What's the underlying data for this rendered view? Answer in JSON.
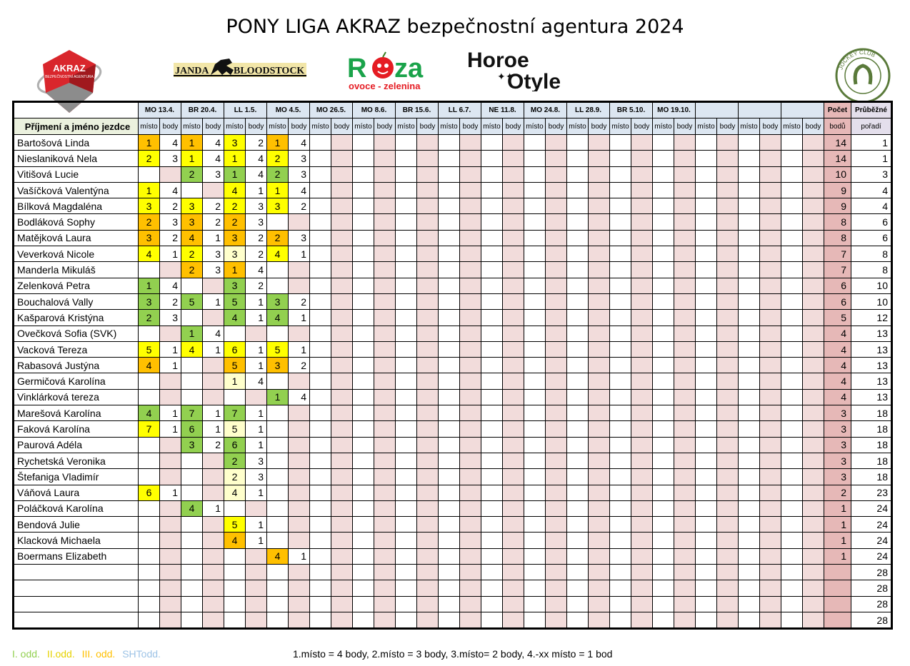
{
  "title": "PONY LIGA AKRAZ bezpečnostní agentura 2024",
  "logos": {
    "akraz_text": "AKRAZ",
    "akraz_sub": "BEZPEČNOSTNÍ AGENTURA",
    "janda_text": "JANDA BLOODSTOCK",
    "roza_text": "Rūza",
    "roza_sub": "ovoce - zelenina",
    "horse_line1": "Horse",
    "horse_line2": "Style",
    "jockey_text": "JOCKEY CLUB ČESKÉ REPUBLIKY"
  },
  "colors": {
    "I": "#92d050",
    "II": "#ffff00",
    "III": "#ffc000",
    "SHT": "#9dc3e6"
  },
  "events": [
    "MO 13.4.",
    "BR 20.4.",
    "LL 1.5.",
    "MO 4.5.",
    "MO 26.5.",
    "MO 8.6.",
    "BR 15.6.",
    "LL 6.7.",
    "NE 11.8.",
    "MO 24.8.",
    "LL 28.9.",
    "BR 5.10.",
    "MO 19.10.",
    "",
    "",
    ""
  ],
  "header": {
    "name_col": "Příjmení a jméno jezdce",
    "misto": "místo",
    "body": "body",
    "points_top": "Počet",
    "points_bottom": "bodů",
    "order_top": "Průběžné",
    "order_bottom": "pořadí"
  },
  "rows": [
    {
      "name": "Bartošová Linda",
      "r": [
        [
          "1",
          "4",
          "o"
        ],
        [
          "1",
          "4",
          "o"
        ],
        [
          "3",
          "2",
          "y"
        ],
        [
          "1",
          "4",
          "o"
        ]
      ],
      "sum": "14",
      "ord": "1"
    },
    {
      "name": "Nieslaniková Nela",
      "r": [
        [
          "2",
          "3",
          "y"
        ],
        [
          "1",
          "4",
          "y"
        ],
        [
          "1",
          "4",
          "y"
        ],
        [
          "2",
          "3",
          "y"
        ]
      ],
      "sum": "14",
      "ord": "1"
    },
    {
      "name": "Vitišová Lucie",
      "r": [
        [
          "",
          "",
          ""
        ],
        [
          "2",
          "3",
          "g"
        ],
        [
          "1",
          "4",
          "g"
        ],
        [
          "2",
          "3",
          "g"
        ]
      ],
      "sum": "10",
      "ord": "3"
    },
    {
      "name": "Vašíčková Valentýna",
      "r": [
        [
          "1",
          "4",
          "y"
        ],
        [
          "",
          "",
          ""
        ],
        [
          "4",
          "1",
          "y"
        ],
        [
          "1",
          "4",
          "y"
        ]
      ],
      "sum": "9",
      "ord": "4"
    },
    {
      "name": "Bílková Magdaléna",
      "r": [
        [
          "3",
          "2",
          "y"
        ],
        [
          "3",
          "2",
          "y"
        ],
        [
          "2",
          "3",
          "y"
        ],
        [
          "3",
          "2",
          "y"
        ]
      ],
      "sum": "9",
      "ord": "4"
    },
    {
      "name": "Bodláková Sophy",
      "r": [
        [
          "2",
          "3",
          "o"
        ],
        [
          "3",
          "2",
          "o"
        ],
        [
          "2",
          "3",
          "o"
        ],
        [
          "",
          "",
          ""
        ]
      ],
      "sum": "8",
      "ord": "6"
    },
    {
      "name": "Matějková Laura",
      "r": [
        [
          "3",
          "2",
          "o"
        ],
        [
          "4",
          "1",
          "o"
        ],
        [
          "3",
          "2",
          "o"
        ],
        [
          "2",
          "3",
          "o"
        ]
      ],
      "sum": "8",
      "ord": "6"
    },
    {
      "name": "Veverková Nicole",
      "r": [
        [
          "4",
          "1",
          "y"
        ],
        [
          "2",
          "3",
          "y"
        ],
        [
          "3",
          "2",
          "c"
        ],
        [
          "4",
          "1",
          "y"
        ]
      ],
      "sum": "7",
      "ord": "8"
    },
    {
      "name": "Manderla Mikuláš",
      "r": [
        [
          "",
          "",
          ""
        ],
        [
          "2",
          "3",
          "o"
        ],
        [
          "1",
          "4",
          "o"
        ],
        [
          "",
          "",
          ""
        ]
      ],
      "sum": "7",
      "ord": "8"
    },
    {
      "name": "Zelenková Petra",
      "r": [
        [
          "1",
          "4",
          "g"
        ],
        [
          "",
          "",
          ""
        ],
        [
          "3",
          "2",
          "g"
        ],
        [
          "",
          "",
          ""
        ]
      ],
      "sum": "6",
      "ord": "10"
    },
    {
      "name": "Bouchalová Vally",
      "r": [
        [
          "3",
          "2",
          "g"
        ],
        [
          "5",
          "1",
          "g"
        ],
        [
          "5",
          "1",
          "g"
        ],
        [
          "3",
          "2",
          "g"
        ]
      ],
      "sum": "6",
      "ord": "10"
    },
    {
      "name": "Kašparová Kristýna",
      "r": [
        [
          "2",
          "3",
          "g"
        ],
        [
          "",
          "",
          ""
        ],
        [
          "4",
          "1",
          "g"
        ],
        [
          "4",
          "1",
          "g"
        ]
      ],
      "sum": "5",
      "ord": "12"
    },
    {
      "name": "Ovečková Sofia (SVK)",
      "r": [
        [
          "",
          "",
          ""
        ],
        [
          "1",
          "4",
          "g"
        ],
        [
          "",
          "",
          ""
        ],
        [
          "",
          "",
          ""
        ]
      ],
      "sum": "4",
      "ord": "13"
    },
    {
      "name": "Vacková Tereza",
      "r": [
        [
          "5",
          "1",
          "y"
        ],
        [
          "4",
          "1",
          "y"
        ],
        [
          "6",
          "1",
          "y"
        ],
        [
          "5",
          "1",
          "y"
        ]
      ],
      "sum": "4",
      "ord": "13"
    },
    {
      "name": "Rabasová Justýna",
      "r": [
        [
          "4",
          "1",
          "o"
        ],
        [
          "",
          "",
          ""
        ],
        [
          "5",
          "1",
          "o"
        ],
        [
          "3",
          "2",
          "o"
        ]
      ],
      "sum": "4",
      "ord": "13"
    },
    {
      "name": "Germičová Karolína",
      "r": [
        [
          "",
          "",
          ""
        ],
        [
          "",
          "",
          ""
        ],
        [
          "1",
          "4",
          "c"
        ],
        [
          "",
          "",
          ""
        ]
      ],
      "sum": "4",
      "ord": "13"
    },
    {
      "name": "Vinklárková tereza",
      "r": [
        [
          "",
          "",
          ""
        ],
        [
          "",
          "",
          ""
        ],
        [
          "",
          "",
          ""
        ],
        [
          "1",
          "4",
          "g"
        ]
      ],
      "sum": "4",
      "ord": "13"
    },
    {
      "name": "Marešová Karolína",
      "r": [
        [
          "4",
          "1",
          "g"
        ],
        [
          "7",
          "1",
          "g"
        ],
        [
          "7",
          "1",
          "g"
        ],
        [
          "",
          "",
          ""
        ]
      ],
      "sum": "3",
      "ord": "18"
    },
    {
      "name": "Faková Karolína",
      "r": [
        [
          "7",
          "1",
          "y"
        ],
        [
          "6",
          "1",
          "g"
        ],
        [
          "5",
          "1",
          "c"
        ],
        [
          "",
          "",
          ""
        ]
      ],
      "sum": "3",
      "ord": "18"
    },
    {
      "name": "Paurová Adéla",
      "r": [
        [
          "",
          "",
          ""
        ],
        [
          "3",
          "2",
          "g"
        ],
        [
          "6",
          "1",
          "g"
        ],
        [
          "",
          "",
          ""
        ]
      ],
      "sum": "3",
      "ord": "18"
    },
    {
      "name": "Rychetská Veronika",
      "r": [
        [
          "",
          "",
          ""
        ],
        [
          "",
          "",
          ""
        ],
        [
          "2",
          "3",
          "g"
        ],
        [
          "",
          "",
          ""
        ]
      ],
      "sum": "3",
      "ord": "18"
    },
    {
      "name": "Štefaniga Vladimír",
      "r": [
        [
          "",
          "",
          ""
        ],
        [
          "",
          "",
          ""
        ],
        [
          "2",
          "3",
          "c"
        ],
        [
          "",
          "",
          ""
        ]
      ],
      "sum": "3",
      "ord": "18"
    },
    {
      "name": "Váňová Laura",
      "r": [
        [
          "6",
          "1",
          "y"
        ],
        [
          "",
          "",
          ""
        ],
        [
          "4",
          "1",
          "c"
        ],
        [
          "",
          "",
          ""
        ]
      ],
      "sum": "2",
      "ord": "23"
    },
    {
      "name": "Poláčková Karolína",
      "r": [
        [
          "",
          "",
          ""
        ],
        [
          "4",
          "1",
          "g"
        ],
        [
          "",
          "",
          ""
        ],
        [
          "",
          "",
          ""
        ]
      ],
      "sum": "1",
      "ord": "24"
    },
    {
      "name": "Bendová Julie",
      "r": [
        [
          "",
          "",
          ""
        ],
        [
          "",
          "",
          ""
        ],
        [
          "5",
          "1",
          "y"
        ],
        [
          "",
          "",
          ""
        ]
      ],
      "sum": "1",
      "ord": "24"
    },
    {
      "name": "Klacková Michaela",
      "r": [
        [
          "",
          "",
          ""
        ],
        [
          "",
          "",
          ""
        ],
        [
          "4",
          "1",
          "o"
        ],
        [
          "",
          "",
          ""
        ]
      ],
      "sum": "1",
      "ord": "24"
    },
    {
      "name": "Boermans Elizabeth",
      "r": [
        [
          "",
          "",
          ""
        ],
        [
          "",
          "",
          ""
        ],
        [
          "",
          "",
          ""
        ],
        [
          "4",
          "1",
          "o"
        ]
      ],
      "sum": "1",
      "ord": "24"
    },
    {
      "name": "",
      "r": [
        [
          "",
          "",
          ""
        ],
        [
          "",
          "",
          ""
        ],
        [
          "",
          "",
          ""
        ],
        [
          "",
          "",
          ""
        ]
      ],
      "sum": "",
      "ord": "28"
    },
    {
      "name": "",
      "r": [
        [
          "",
          "",
          ""
        ],
        [
          "",
          "",
          ""
        ],
        [
          "",
          "",
          ""
        ],
        [
          "",
          "",
          ""
        ]
      ],
      "sum": "",
      "ord": "28"
    },
    {
      "name": "",
      "r": [
        [
          "",
          "",
          ""
        ],
        [
          "",
          "",
          ""
        ],
        [
          "",
          "",
          ""
        ],
        [
          "",
          "",
          ""
        ]
      ],
      "sum": "",
      "ord": "28"
    },
    {
      "name": "",
      "r": [
        [
          "",
          "",
          ""
        ],
        [
          "",
          "",
          ""
        ],
        [
          "",
          "",
          ""
        ],
        [
          "",
          "",
          ""
        ]
      ],
      "sum": "",
      "ord": "28"
    }
  ],
  "legend": [
    "I. odd.",
    "II.odd.",
    "III. odd.",
    "SHTodd."
  ],
  "rule": "1.místo = 4 body, 2.místo = 3 body, 3.místo= 2 body, 4.-xx místo = 1 bod"
}
